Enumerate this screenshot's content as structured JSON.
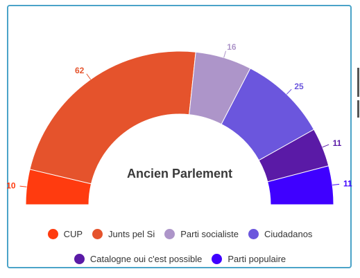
{
  "chart_data": {
    "type": "pie",
    "subtype": "semicircle-donut",
    "title": "Ancien Parlement",
    "series": [
      {
        "name": "CUP",
        "value": 10,
        "color": "#ff3b0f"
      },
      {
        "name": "Junts pel Si",
        "value": 62,
        "color": "#e5532c"
      },
      {
        "name": "Parti socialiste",
        "value": 16,
        "color": "#ad95c9"
      },
      {
        "name": "Ciudadanos",
        "value": 25,
        "color": "#6b56dd"
      },
      {
        "name": "Catalogne oui c'est possible",
        "value": 11,
        "color": "#5a1aa6"
      },
      {
        "name": "Parti populaire",
        "value": 11,
        "color": "#3f00ff"
      }
    ],
    "legend_position": "bottom"
  }
}
